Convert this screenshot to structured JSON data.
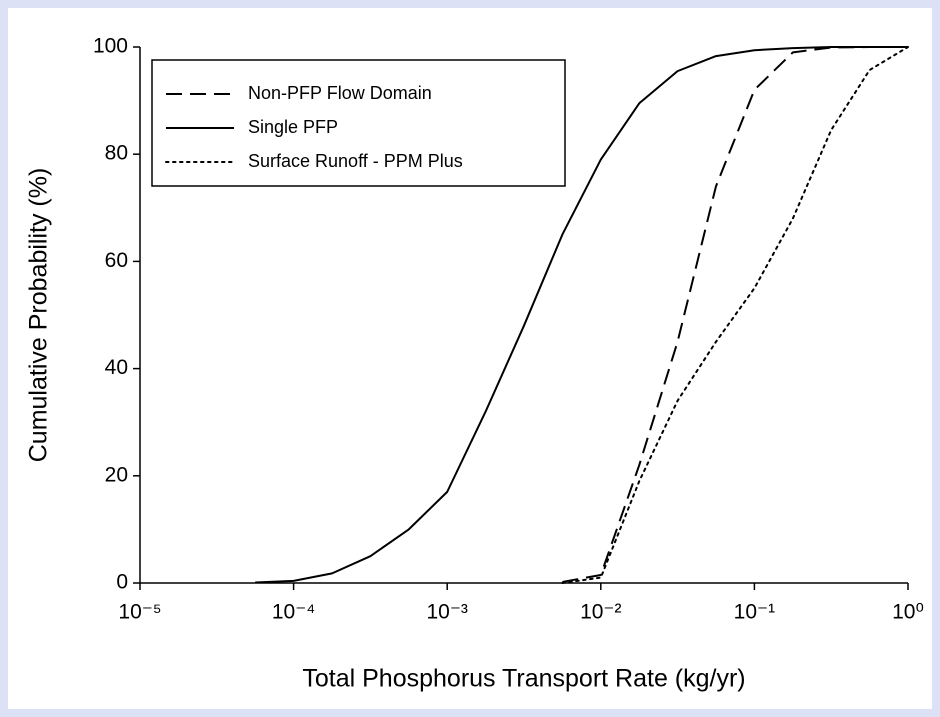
{
  "chart_data": {
    "type": "line",
    "xlabel": "Total Phosphorus Transport Rate (kg/yr)",
    "ylabel": "Cumulative Probability (%)",
    "xscale": "log",
    "x": [
      3.16e-05,
      5.62e-05,
      0.0001,
      0.000178,
      0.000316,
      0.000562,
      0.001,
      0.00178,
      0.00316,
      0.00562,
      0.01,
      0.0178,
      0.0316,
      0.0562,
      0.1,
      0.178,
      0.316,
      0.562,
      1
    ],
    "series": [
      {
        "name": "Non-PFP Flow Domain",
        "color": "#000000",
        "dash": "dashed",
        "values": [
          null,
          null,
          null,
          null,
          null,
          null,
          null,
          null,
          null,
          0.2,
          1.5,
          22,
          45,
          74,
          92,
          99,
          99.9,
          100,
          100
        ]
      },
      {
        "name": "Single PFP",
        "color": "#000000",
        "dash": "solid",
        "values": [
          null,
          0.1,
          0.4,
          1.8,
          5,
          10,
          17,
          32,
          48,
          65,
          79,
          89.5,
          95.5,
          98.3,
          99.4,
          99.8,
          100,
          100,
          100
        ]
      },
      {
        "name": "Surface Runoff - PPM Plus",
        "color": "#000000",
        "dash": "dotted",
        "values": [
          null,
          null,
          null,
          null,
          null,
          null,
          null,
          null,
          null,
          0,
          1,
          19,
          34,
          45,
          55,
          68,
          84.5,
          95.7,
          100
        ]
      }
    ],
    "xlim": [
      1e-05,
      1
    ],
    "xticks": [
      {
        "value": 1e-05,
        "label": "10⁻⁵"
      },
      {
        "value": 0.0001,
        "label": "10⁻⁴"
      },
      {
        "value": 0.001,
        "label": "10⁻³"
      },
      {
        "value": 0.01,
        "label": "10⁻²"
      },
      {
        "value": 0.1,
        "label": "10⁻¹"
      },
      {
        "value": 1,
        "label": "10⁰"
      }
    ],
    "ylim": [
      0,
      100
    ],
    "yticks": [
      0,
      20,
      40,
      60,
      80,
      100
    ],
    "legend": "upper left"
  }
}
